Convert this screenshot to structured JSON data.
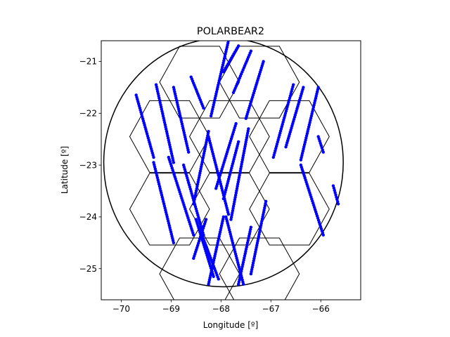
{
  "chart_data": {
    "type": "scatter",
    "title": "POLARBEAR2",
    "xlabel": "Longitude [º]",
    "ylabel": "Latitude [º]",
    "xlim": [
      -70.4,
      -65.2
    ],
    "ylim": [
      -25.6,
      -20.6
    ],
    "xticks": [
      -70,
      -69,
      -68,
      -67,
      -66
    ],
    "xtick_labels": [
      "−70",
      "−69",
      "−68",
      "−67",
      "−66"
    ],
    "yticks": [
      -21,
      -22,
      -23,
      -24,
      -25
    ],
    "ytick_labels": [
      "−21",
      "−22",
      "−23",
      "−24",
      "−25"
    ],
    "grid": false,
    "circle": {
      "center": [
        -67.95,
        -22.95
      ],
      "radius": 2.4,
      "color": "#000000"
    },
    "hexagons": {
      "radius": 0.8,
      "color": "#000000",
      "centers": [
        [
          -68.43,
          -21.4
        ],
        [
          -67.23,
          -21.4
        ],
        [
          -69.03,
          -22.45
        ],
        [
          -67.83,
          -22.45
        ],
        [
          -66.63,
          -22.45
        ],
        [
          -69.03,
          -23.85
        ],
        [
          -67.83,
          -23.85
        ],
        [
          -66.63,
          -23.85
        ],
        [
          -68.43,
          -25.1
        ],
        [
          -67.23,
          -25.1
        ]
      ]
    },
    "series": [
      {
        "color": "#0000ff",
        "segments": [
          [
            [
              -69.7,
              -21.65
            ],
            [
              -69.35,
              -22.85
            ]
          ],
          [
            [
              -69.3,
              -21.45
            ],
            [
              -68.95,
              -22.95
            ]
          ],
          [
            [
              -68.95,
              -21.5
            ],
            [
              -68.65,
              -22.75
            ]
          ],
          [
            [
              -68.6,
              -21.3
            ],
            [
              -68.35,
              -21.9
            ]
          ],
          [
            [
              -68.2,
              -22.05
            ],
            [
              -67.85,
              -20.6
            ]
          ],
          [
            [
              -67.95,
              -21.2
            ],
            [
              -67.65,
              -20.7
            ]
          ],
          [
            [
              -67.75,
              -21.6
            ],
            [
              -67.4,
              -20.8
            ]
          ],
          [
            [
              -67.5,
              -22.1
            ],
            [
              -67.15,
              -21.0
            ]
          ],
          [
            [
              -66.95,
              -22.85
            ],
            [
              -66.55,
              -21.45
            ]
          ],
          [
            [
              -66.7,
              -22.65
            ],
            [
              -66.35,
              -21.5
            ]
          ],
          [
            [
              -66.4,
              -22.9
            ],
            [
              -66.05,
              -21.5
            ]
          ],
          [
            [
              -66.05,
              -22.45
            ],
            [
              -65.95,
              -22.75
            ]
          ],
          [
            [
              -66.4,
              -23.0
            ],
            [
              -65.95,
              -24.35
            ]
          ],
          [
            [
              -65.75,
              -23.4
            ],
            [
              -65.65,
              -23.75
            ]
          ],
          [
            [
              -69.35,
              -22.95
            ],
            [
              -68.95,
              -24.5
            ]
          ],
          [
            [
              -69.05,
              -22.85
            ],
            [
              -68.55,
              -24.35
            ]
          ],
          [
            [
              -68.75,
              -23.0
            ],
            [
              -68.35,
              -24.35
            ]
          ],
          [
            [
              -68.55,
              -23.75
            ],
            [
              -68.25,
              -22.35
            ]
          ],
          [
            [
              -68.25,
              -22.45
            ],
            [
              -67.85,
              -23.95
            ]
          ],
          [
            [
              -68.1,
              -23.45
            ],
            [
              -67.7,
              -22.2
            ]
          ],
          [
            [
              -67.95,
              -23.65
            ],
            [
              -67.65,
              -22.55
            ]
          ],
          [
            [
              -67.8,
              -24.05
            ],
            [
              -67.45,
              -22.3
            ]
          ],
          [
            [
              -68.5,
              -24.05
            ],
            [
              -68.15,
              -25.15
            ]
          ],
          [
            [
              -68.4,
              -24.3
            ],
            [
              -68.05,
              -25.2
            ]
          ],
          [
            [
              -68.55,
              -24.8
            ],
            [
              -68.3,
              -24.05
            ]
          ],
          [
            [
              -67.9,
              -24.0
            ],
            [
              -67.55,
              -25.3
            ]
          ],
          [
            [
              -68.25,
              -25.3
            ],
            [
              -67.95,
              -24.0
            ]
          ],
          [
            [
              -67.65,
              -25.3
            ],
            [
              -67.4,
              -24.2
            ]
          ],
          [
            [
              -67.4,
              -25.1
            ],
            [
              -67.1,
              -23.7
            ]
          ]
        ]
      }
    ]
  }
}
